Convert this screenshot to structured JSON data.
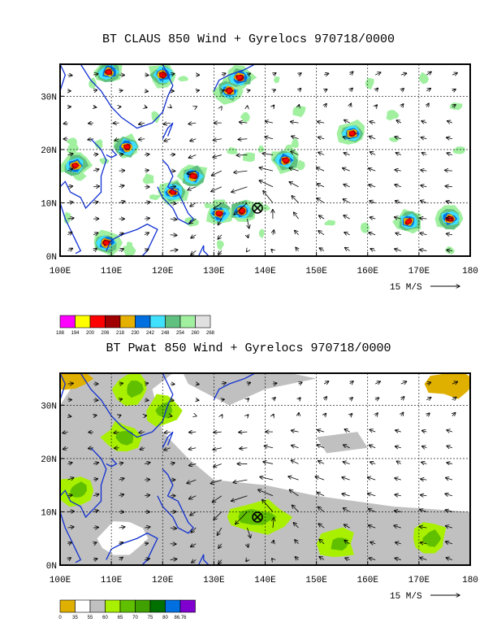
{
  "charts": [
    {
      "title": "BT CLAUS 850 Wind + Gyrelocs 970718/0000",
      "x_ticks": [
        "100E",
        "110E",
        "120E",
        "130E",
        "140E",
        "150E",
        "160E",
        "170E",
        "180"
      ],
      "y_ticks": [
        "0N",
        "10N",
        "20N",
        "30N"
      ],
      "ref_vector_label": "15 M/S",
      "colorbar": {
        "labels": [
          "188",
          "194",
          "200",
          "206",
          "218",
          "230",
          "242",
          "248",
          "254",
          "260",
          "268"
        ],
        "colors": [
          "#ff00ff",
          "#ffff00",
          "#ff0000",
          "#a00000",
          "#e6b000",
          "#0070e0",
          "#40e0ff",
          "#60c080",
          "#a0f0a0",
          "#e0e0e0"
        ]
      }
    },
    {
      "title": "BT Pwat 850 Wind + Gyrelocs 970718/0000",
      "x_ticks": [
        "100E",
        "110E",
        "120E",
        "130E",
        "140E",
        "150E",
        "160E",
        "170E",
        "180"
      ],
      "y_ticks": [
        "0N",
        "10N",
        "20N",
        "30N"
      ],
      "ref_vector_label": "15 M/S",
      "colorbar": {
        "labels": [
          "0",
          "35",
          "55",
          "60",
          "65",
          "70",
          "75",
          "80",
          "86.76"
        ],
        "colors": [
          "#e0b000",
          "#ffffff",
          "#c0c0c0",
          "#a8f000",
          "#60c000",
          "#40a000",
          "#007000",
          "#0070e0",
          "#8000d0"
        ]
      }
    }
  ],
  "chart_data": [
    {
      "type": "heatmap",
      "title": "BT CLAUS 850 Wind + Gyrelocs 970718/0000",
      "xlabel": "",
      "ylabel": "",
      "xlim": [
        100,
        180
      ],
      "ylim": [
        0,
        36
      ],
      "x_ticks": [
        100,
        110,
        120,
        130,
        140,
        150,
        160,
        170,
        180
      ],
      "y_ticks": [
        0,
        10,
        20,
        30
      ],
      "grid": true,
      "gyre_location": {
        "lon": 138.5,
        "lat": 9.0
      },
      "cold_cloud_patches": [
        {
          "lon": 109.5,
          "lat": 34.5
        },
        {
          "lon": 120,
          "lat": 34
        },
        {
          "lon": 133,
          "lat": 31
        },
        {
          "lon": 135,
          "lat": 33.5
        },
        {
          "lon": 113,
          "lat": 20.5
        },
        {
          "lon": 103,
          "lat": 17
        },
        {
          "lon": 126,
          "lat": 15
        },
        {
          "lon": 122,
          "lat": 12
        },
        {
          "lon": 131,
          "lat": 8
        },
        {
          "lon": 135.5,
          "lat": 8.5
        },
        {
          "lon": 157,
          "lat": 23
        },
        {
          "lon": 168,
          "lat": 6.5
        },
        {
          "lon": 176,
          "lat": 7
        },
        {
          "lon": 109,
          "lat": 2.5
        },
        {
          "lon": 144,
          "lat": 18
        }
      ]
    },
    {
      "type": "heatmap",
      "title": "BT Pwat 850 Wind + Gyrelocs 970718/0000",
      "xlabel": "",
      "ylabel": "",
      "xlim": [
        100,
        180
      ],
      "ylim": [
        0,
        36
      ],
      "x_ticks": [
        100,
        110,
        120,
        130,
        140,
        150,
        160,
        170,
        180
      ],
      "y_ticks": [
        0,
        10,
        20,
        30
      ],
      "grid": true,
      "gyre_location": {
        "lon": 138.5,
        "lat": 9.0
      },
      "dry_regions_lt35": [
        {
          "lon": 102,
          "lat": 35
        },
        {
          "lon": 176,
          "lat": 34
        }
      ],
      "moist_regions_gt60": [
        {
          "lon": 103,
          "lat": 14
        },
        {
          "lon": 112,
          "lat": 24
        },
        {
          "lon": 114,
          "lat": 33
        },
        {
          "lon": 120,
          "lat": 29
        },
        {
          "lon": 138,
          "lat": 9
        },
        {
          "lon": 154,
          "lat": 4
        },
        {
          "lon": 172,
          "lat": 5
        }
      ]
    }
  ]
}
